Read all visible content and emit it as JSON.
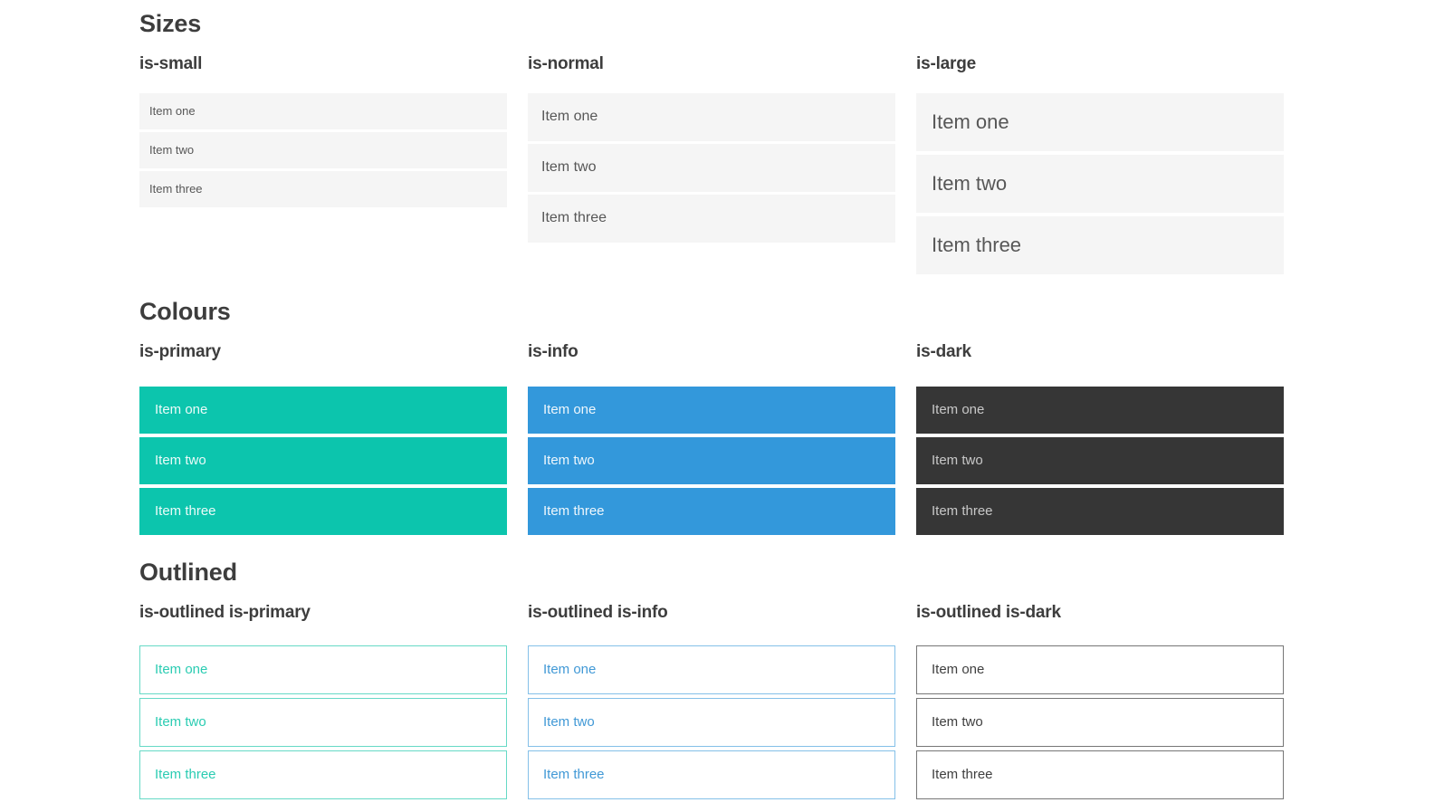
{
  "colors": {
    "heading": "#3d3d3d",
    "text": "#575757",
    "light": "#f5f5f5",
    "primary": "#0cc5ad",
    "info": "#3398db",
    "dark": "#363636",
    "on_color": "rgba(255,255,255,0.92)",
    "on_dark": "rgba(255,255,255,0.72)",
    "primary_outline": "#66d9c6",
    "primary_text": "#2accb2",
    "info_outline": "#84c0e8",
    "info_text": "#4199d6",
    "dark_outline": "#767676",
    "dark_text": "#3f3f3f"
  },
  "sections": [
    {
      "title": "Sizes",
      "groups": [
        {
          "label": "is-small",
          "items": [
            "Item one",
            "Item two",
            "Item three"
          ]
        },
        {
          "label": "is-normal",
          "items": [
            "Item one",
            "Item two",
            "Item three"
          ]
        },
        {
          "label": "is-large",
          "items": [
            "Item one",
            "Item two",
            "Item three"
          ]
        }
      ]
    },
    {
      "title": "Colours",
      "groups": [
        {
          "label": "is-primary",
          "items": [
            "Item one",
            "Item two",
            "Item three"
          ]
        },
        {
          "label": "is-info",
          "items": [
            "Item one",
            "Item two",
            "Item three"
          ]
        },
        {
          "label": "is-dark",
          "items": [
            "Item one",
            "Item two",
            "Item three"
          ]
        }
      ]
    },
    {
      "title": "Outlined",
      "groups": [
        {
          "label": "is-outlined is-primary",
          "items": [
            "Item one",
            "Item two",
            "Item three"
          ]
        },
        {
          "label": "is-outlined is-info",
          "items": [
            "Item one",
            "Item two",
            "Item three"
          ]
        },
        {
          "label": "is-outlined is-dark",
          "items": [
            "Item one",
            "Item two",
            "Item three"
          ]
        }
      ]
    }
  ]
}
